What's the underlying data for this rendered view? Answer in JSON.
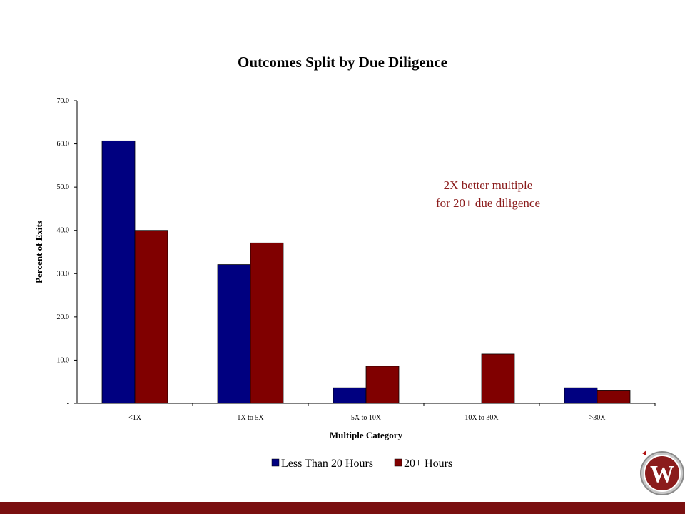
{
  "chart_data": {
    "type": "bar",
    "title": "Outcomes Split by Due Diligence",
    "xlabel": "Multiple Category",
    "ylabel": "Percent of Exits",
    "categories": [
      "<1X",
      "1X to 5X",
      "5X to 10X",
      "10X to 30X",
      ">30X"
    ],
    "series": [
      {
        "name": "Less Than 20 Hours",
        "color": "#000080",
        "values": [
          60.7,
          32.1,
          3.6,
          0,
          3.6
        ]
      },
      {
        "name": "20+ Hours",
        "color": "#800000",
        "values": [
          40.0,
          37.1,
          8.6,
          11.4,
          2.9
        ]
      }
    ],
    "ylim": [
      0,
      70
    ],
    "yticks": [
      "-",
      "10.0",
      "20.0",
      "30.0",
      "40.0",
      "50.0",
      "60.0",
      "70.0"
    ],
    "grid": false,
    "legend": "bottom",
    "annotation": [
      "2X better multiple",
      "for 20+ due diligence"
    ]
  },
  "logo": {
    "letter": "W",
    "color": "#8b1c1c"
  },
  "footer": {
    "color": "#7a0f10"
  }
}
